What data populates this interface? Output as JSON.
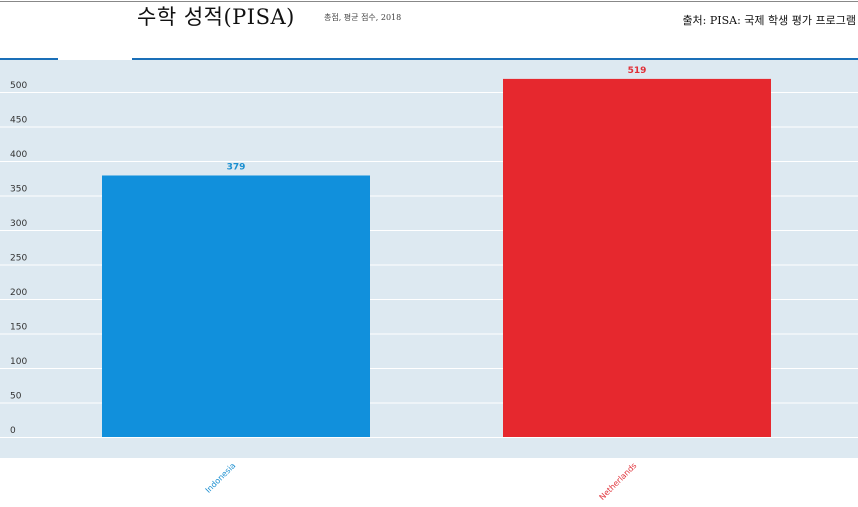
{
  "header": {
    "title": "수학 성적(PISA)",
    "subtitle": "총점, 평균 점수, 2018",
    "source": "출처: PISA: 국제 학생 평가 프로그램"
  },
  "chart_data": {
    "type": "bar",
    "title": "수학 성적(PISA)",
    "xlabel": "",
    "ylabel": "",
    "categories": [
      "Indonesia",
      "Netherlands"
    ],
    "values": [
      379,
      519
    ],
    "colors": [
      "#1190dc",
      "#e6282e"
    ],
    "label_colors": [
      "#1b8fd0",
      "#e03038"
    ],
    "ylim": [
      0,
      550
    ],
    "yticks": [
      "0",
      "50",
      "100",
      "150",
      "200",
      "250",
      "300",
      "350",
      "400",
      "450",
      "500"
    ],
    "grid": true,
    "plot_background": "#dde9f1",
    "legend": "none"
  }
}
